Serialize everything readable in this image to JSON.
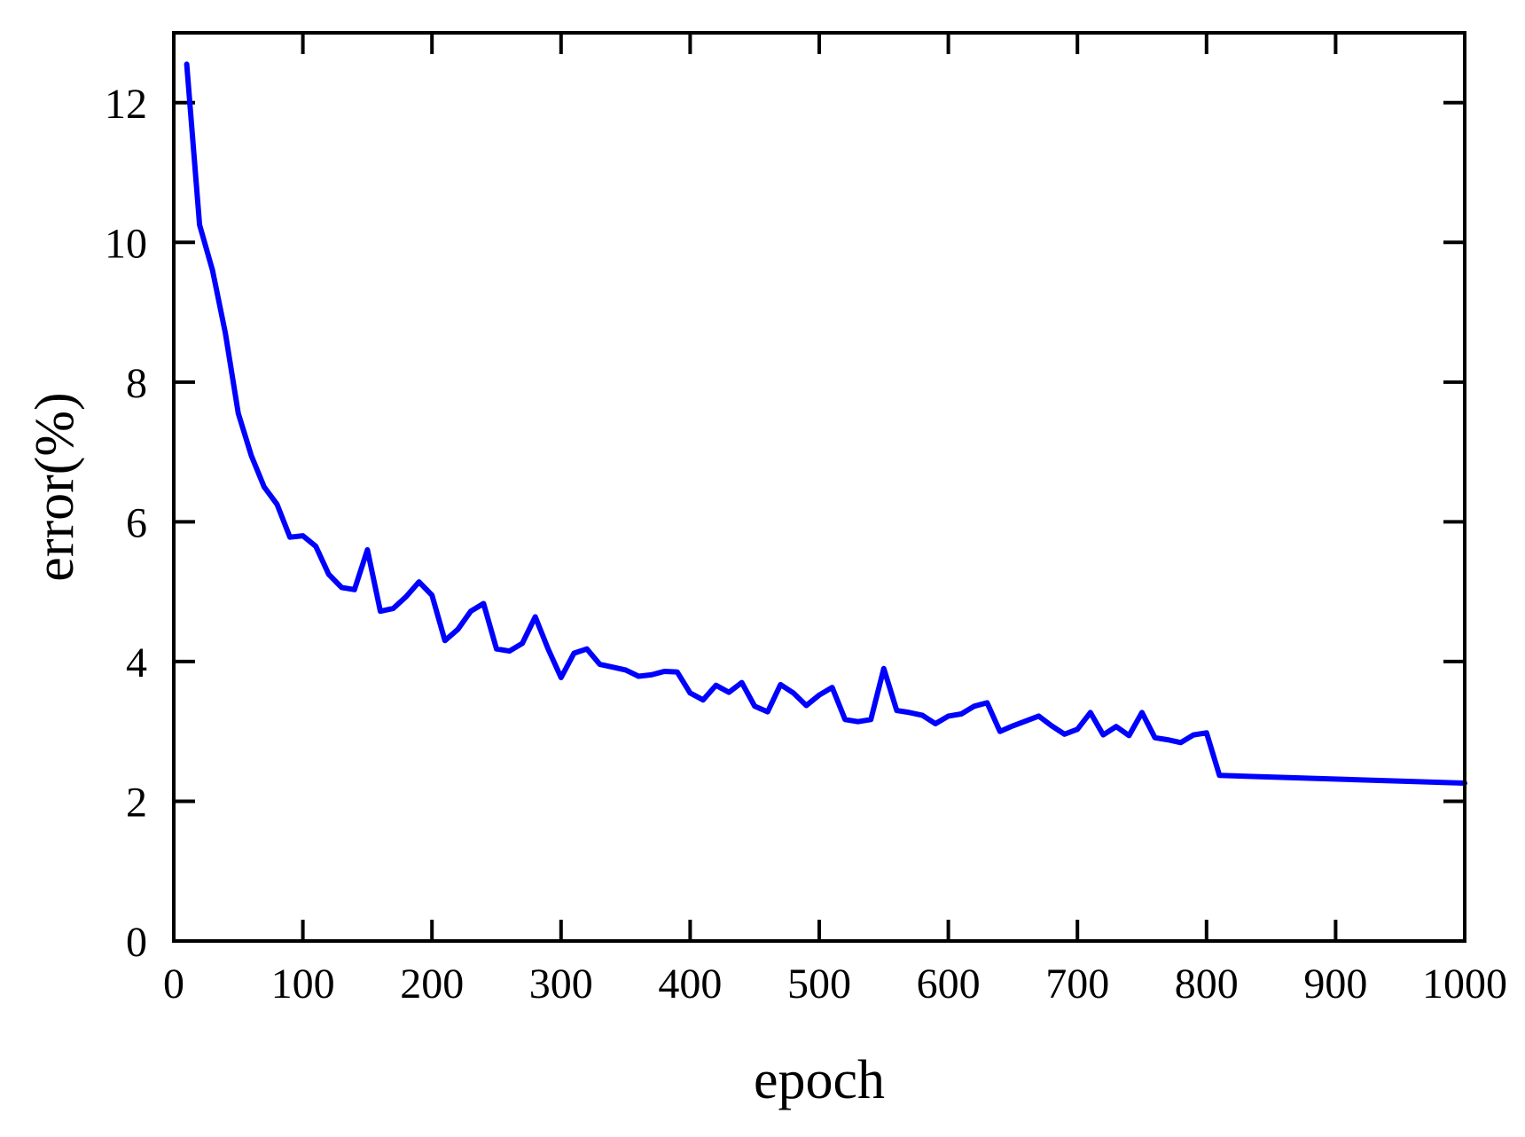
{
  "chart_data": {
    "type": "line",
    "title": "",
    "xlabel": "epoch",
    "ylabel": "error(%)",
    "xlim": [
      0,
      1000
    ],
    "ylim": [
      0,
      13
    ],
    "x_ticks": [
      0,
      100,
      200,
      300,
      400,
      500,
      600,
      700,
      800,
      900,
      1000
    ],
    "y_ticks": [
      0,
      2,
      4,
      6,
      8,
      10,
      12
    ],
    "grid": false,
    "legend": "none",
    "colors": {
      "line": "#0000ff",
      "axis": "#000000"
    },
    "series": [
      {
        "x": [
          10,
          20,
          30,
          40,
          50,
          60,
          70,
          80,
          90,
          100,
          110,
          120,
          130,
          140,
          150,
          160,
          170,
          180,
          190,
          200,
          210,
          220,
          230,
          240,
          250,
          260,
          270,
          280,
          290,
          300,
          310,
          320,
          330,
          340,
          350,
          360,
          370,
          380,
          390,
          400,
          410,
          420,
          430,
          440,
          450,
          460,
          470,
          480,
          490,
          500,
          510,
          520,
          530,
          540,
          550,
          560,
          570,
          580,
          590,
          600,
          610,
          620,
          630,
          640,
          650,
          660,
          670,
          680,
          690,
          700,
          710,
          720,
          730,
          740,
          750,
          760,
          770,
          780,
          790,
          800,
          810,
          1000
        ],
        "values": [
          12.55,
          10.25,
          9.6,
          8.7,
          7.55,
          6.95,
          6.5,
          6.25,
          5.78,
          5.8,
          5.65,
          5.25,
          5.06,
          5.03,
          5.6,
          4.72,
          4.76,
          4.93,
          5.14,
          4.95,
          4.3,
          4.46,
          4.72,
          4.83,
          4.18,
          4.15,
          4.26,
          4.64,
          4.18,
          3.77,
          4.12,
          4.18,
          3.96,
          3.92,
          3.88,
          3.79,
          3.81,
          3.86,
          3.85,
          3.55,
          3.45,
          3.66,
          3.56,
          3.7,
          3.36,
          3.28,
          3.67,
          3.55,
          3.37,
          3.52,
          3.63,
          3.17,
          3.14,
          3.17,
          3.9,
          3.3,
          3.27,
          3.23,
          3.11,
          3.22,
          3.25,
          3.36,
          3.41,
          3.0,
          3.08,
          3.15,
          3.22,
          3.08,
          2.96,
          3.03,
          3.27,
          2.95,
          3.07,
          2.94,
          3.27,
          2.91,
          2.88,
          2.84,
          2.95,
          2.98,
          2.37,
          2.26
        ]
      }
    ]
  }
}
